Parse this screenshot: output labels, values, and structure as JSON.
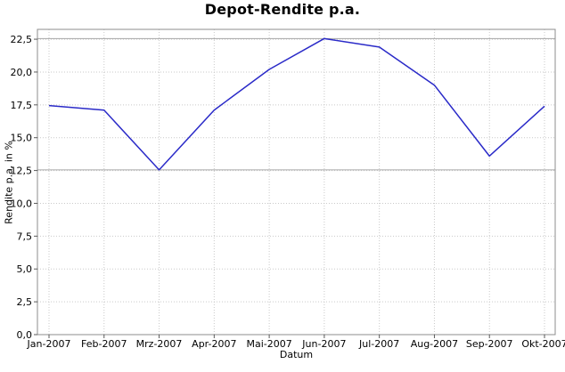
{
  "chart_data": {
    "type": "line",
    "title": "Depot-Rendite p.a.",
    "xlabel": "Datum",
    "ylabel": "Rendite p.a. in %",
    "categories": [
      "Jan-2007",
      "Feb-2007",
      "Mrz-2007",
      "Apr-2007",
      "Mai-2007",
      "Jun-2007",
      "Jul-2007",
      "Aug-2007",
      "Sep-2007",
      "Okt-2007"
    ],
    "values": [
      17.45,
      17.1,
      12.55,
      17.1,
      20.2,
      22.55,
      21.9,
      19.0,
      13.6,
      17.4
    ],
    "y_tick_values": [
      0,
      2.5,
      5,
      7.5,
      10,
      12.5,
      15,
      17.5,
      20,
      22.5
    ],
    "y_tick_labels": [
      "0,0",
      "2,5",
      "5,0",
      "7,5",
      "10,0",
      "12,5",
      "15,0",
      "17,5",
      "20,0",
      "22,5"
    ],
    "ylim": [
      0,
      23.25
    ],
    "grid": true,
    "legend": false,
    "marker_lines": "solid gray horizontal lines at series min and max",
    "colors": {
      "line": "#2a2ac8",
      "grid": "#c9c9c9",
      "marker_line": "#a6a6a6",
      "plot_border": "#8e8e8e",
      "tick": "#5a5a5a",
      "text": "#000000"
    }
  }
}
